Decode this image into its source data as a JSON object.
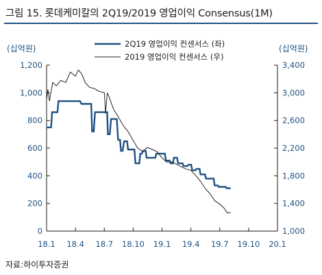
{
  "title": "그림 15. 롯데케미칼의 2Q19/2019 영업이익 Consensus(1M)",
  "units": {
    "left": "(십억원)",
    "right": "(십억원)"
  },
  "source": "자료:하이투자증권",
  "colors": {
    "accent": "#1f5082",
    "q_series": "#1f5082",
    "year_series": "#222222"
  },
  "chart_data": {
    "type": "line",
    "title": "그림 15. 롯데케미칼의 2Q19/2019 영업이익 Consensus(1M)",
    "x_axis": {
      "ticks": [
        "18.1",
        "18.4",
        "18.7",
        "18.10",
        "19.1",
        "19.4",
        "19.7",
        "19.10",
        "20.1"
      ],
      "range": [
        "18.1",
        "20.1"
      ]
    },
    "y_left": {
      "label": "(십억원)",
      "range": [
        0,
        1200
      ],
      "ticks": [
        "0",
        "200",
        "400",
        "600",
        "800",
        "1,000",
        "1,200"
      ]
    },
    "y_right": {
      "label": "(십억원)",
      "range": [
        1000,
        3400
      ],
      "ticks": [
        "1,000",
        "1,400",
        "1,800",
        "2,200",
        "2,600",
        "3,000",
        "3,400"
      ]
    },
    "legend": "top-center",
    "series": [
      {
        "name": "2Q19 영업이익 컨센서스 (좌)",
        "axis": "left",
        "points": [
          [
            "18.1",
            750
          ],
          [
            "18.1.15",
            750
          ],
          [
            "18.1.18",
            860
          ],
          [
            "18.2.5",
            860
          ],
          [
            "18.2.8",
            940
          ],
          [
            "18.4.15",
            940
          ],
          [
            "18.4.20",
            920
          ],
          [
            "18.5.20",
            920
          ],
          [
            "18.5.23",
            720
          ],
          [
            "18.5.28",
            720
          ],
          [
            "18.6.2",
            860
          ],
          [
            "18.7.10",
            860
          ],
          [
            "18.7.12",
            700
          ],
          [
            "18.7.18",
            700
          ],
          [
            "18.7.22",
            810
          ],
          [
            "18.8.10",
            810
          ],
          [
            "18.8.14",
            660
          ],
          [
            "18.8.20",
            660
          ],
          [
            "18.8.23",
            580
          ],
          [
            "18.8.28",
            580
          ],
          [
            "18.9.3",
            650
          ],
          [
            "18.9.12",
            650
          ],
          [
            "18.9.15",
            590
          ],
          [
            "18.10.5",
            590
          ],
          [
            "18.10.8",
            490
          ],
          [
            "18.10.20",
            490
          ],
          [
            "18.10.23",
            560
          ],
          [
            "18.10.28",
            560
          ],
          [
            "18.11.2",
            580
          ],
          [
            "18.11.10",
            580
          ],
          [
            "18.11.13",
            530
          ],
          [
            "18.12.10",
            530
          ],
          [
            "18.12.13",
            560
          ],
          [
            "19.1.10",
            560
          ],
          [
            "19.1.13",
            510
          ],
          [
            "19.1.25",
            510
          ],
          [
            "19.1.28",
            490
          ],
          [
            "19.2.5",
            490
          ],
          [
            "19.2.8",
            530
          ],
          [
            "19.2.18",
            530
          ],
          [
            "19.2.21",
            490
          ],
          [
            "19.3.5",
            490
          ],
          [
            "19.3.8",
            470
          ],
          [
            "19.3.20",
            470
          ],
          [
            "19.3.23",
            480
          ],
          [
            "19.4.2",
            480
          ],
          [
            "19.4.5",
            440
          ],
          [
            "19.4.15",
            440
          ],
          [
            "19.4.18",
            450
          ],
          [
            "19.4.28",
            450
          ],
          [
            "19.5.1",
            410
          ],
          [
            "19.5.15",
            410
          ],
          [
            "19.5.18",
            380
          ],
          [
            "19.6.12",
            380
          ],
          [
            "19.6.15",
            330
          ],
          [
            "19.6.25",
            330
          ],
          [
            "19.6.28",
            320
          ],
          [
            "19.7.20",
            320
          ],
          [
            "19.7.22",
            310
          ],
          [
            "19.8.5",
            310
          ]
        ]
      },
      {
        "name": "2019 영업이익 컨센서스 (우)",
        "axis": "right",
        "points": [
          [
            "18.1",
            2900
          ],
          [
            "18.1.5",
            3050
          ],
          [
            "18.1.10",
            2880
          ],
          [
            "18.1.20",
            3150
          ],
          [
            "18.2.1",
            3100
          ],
          [
            "18.2.15",
            3180
          ],
          [
            "18.3.1",
            3150
          ],
          [
            "18.3.15",
            3300
          ],
          [
            "18.4.1",
            3240
          ],
          [
            "18.4.10",
            3330
          ],
          [
            "18.4.20",
            3280
          ],
          [
            "18.5.1",
            3150
          ],
          [
            "18.5.15",
            3080
          ],
          [
            "18.6.1",
            3060
          ],
          [
            "18.6.15",
            3020
          ],
          [
            "18.7.1",
            3000
          ],
          [
            "18.7.5",
            2700
          ],
          [
            "18.7.10",
            3000
          ],
          [
            "18.7.15",
            2950
          ],
          [
            "18.8.1",
            2750
          ],
          [
            "18.8.15",
            2650
          ],
          [
            "18.9.1",
            2520
          ],
          [
            "18.9.15",
            2440
          ],
          [
            "18.10.1",
            2310
          ],
          [
            "18.10.15",
            2200
          ],
          [
            "18.11.1",
            2150
          ],
          [
            "18.11.15",
            2210
          ],
          [
            "18.12.1",
            2180
          ],
          [
            "18.12.15",
            2150
          ],
          [
            "19.1.1",
            2060
          ],
          [
            "19.1.15",
            2000
          ],
          [
            "19.2.1",
            2000
          ],
          [
            "19.2.15",
            1970
          ],
          [
            "19.3.1",
            1930
          ],
          [
            "19.3.15",
            1900
          ],
          [
            "19.4.1",
            1880
          ],
          [
            "19.4.15",
            1810
          ],
          [
            "19.5.1",
            1720
          ],
          [
            "19.5.15",
            1620
          ],
          [
            "19.6.1",
            1540
          ],
          [
            "19.6.15",
            1440
          ],
          [
            "19.7.1",
            1390
          ],
          [
            "19.7.15",
            1330
          ],
          [
            "19.7.25",
            1260
          ],
          [
            "19.8.5",
            1270
          ]
        ]
      }
    ]
  }
}
